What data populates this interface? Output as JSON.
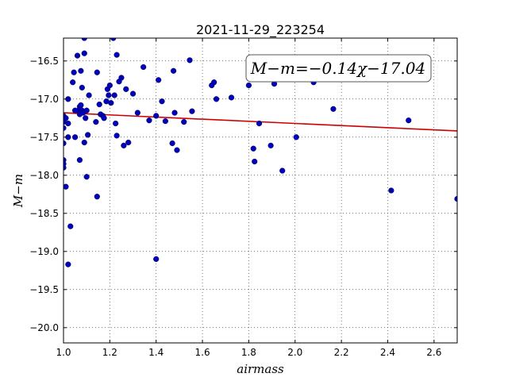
{
  "chart_data": {
    "type": "scatter",
    "title": "2021-11-29_223254",
    "xlabel": "airmass",
    "ylabel": "M−m",
    "xlim": [
      1.0,
      2.7
    ],
    "ylim": [
      -20.2,
      -16.2
    ],
    "y_inverted": true,
    "grid": true,
    "x_ticks": [
      1.0,
      1.2,
      1.4,
      1.6,
      1.8,
      2.0,
      2.2,
      2.4,
      2.6
    ],
    "x_tick_labels": [
      "1.0",
      "1.2",
      "1.4",
      "1.6",
      "1.8",
      "2.0",
      "2.2",
      "2.4",
      "2.6"
    ],
    "y_ticks": [
      -16.5,
      -17.0,
      -17.5,
      -18.0,
      -18.5,
      -19.0,
      -19.5,
      -20.0
    ],
    "y_tick_labels": [
      "−16.5",
      "−17.0",
      "−17.5",
      "−18.0",
      "−18.5",
      "−19.0",
      "−19.5",
      "−20.0"
    ],
    "annotation": "M−m=−0.14χ−17.04",
    "fit": {
      "slope": -0.14,
      "intercept": -17.04,
      "color": "#cc0000"
    },
    "point_color": "#0000bb",
    "points": [
      [
        1.0,
        -17.22
      ],
      [
        1.0,
        -17.3
      ],
      [
        1.0,
        -17.38
      ],
      [
        1.0,
        -17.58
      ],
      [
        1.0,
        -17.8
      ],
      [
        1.0,
        -17.85
      ],
      [
        1.0,
        -17.9
      ],
      [
        1.01,
        -17.25
      ],
      [
        1.01,
        -18.15
      ],
      [
        1.02,
        -17.0
      ],
      [
        1.02,
        -17.32
      ],
      [
        1.02,
        -17.5
      ],
      [
        1.02,
        -19.17
      ],
      [
        1.03,
        -18.67
      ],
      [
        1.04,
        -16.78
      ],
      [
        1.045,
        -16.65
      ],
      [
        1.05,
        -17.15
      ],
      [
        1.05,
        -17.5
      ],
      [
        1.06,
        -16.43
      ],
      [
        1.065,
        -17.15
      ],
      [
        1.07,
        -17.1
      ],
      [
        1.07,
        -17.2
      ],
      [
        1.07,
        -17.8
      ],
      [
        1.075,
        -16.63
      ],
      [
        1.075,
        -17.08
      ],
      [
        1.08,
        -16.85
      ],
      [
        1.08,
        -17.15
      ],
      [
        1.085,
        -17.18
      ],
      [
        1.09,
        -16.2
      ],
      [
        1.09,
        -16.4
      ],
      [
        1.09,
        -17.57
      ],
      [
        1.095,
        -17.25
      ],
      [
        1.1,
        -17.15
      ],
      [
        1.1,
        -18.02
      ],
      [
        1.105,
        -17.47
      ],
      [
        1.11,
        -16.95
      ],
      [
        1.14,
        -17.3
      ],
      [
        1.145,
        -16.65
      ],
      [
        1.145,
        -18.28
      ],
      [
        1.155,
        -17.07
      ],
      [
        1.16,
        -17.2
      ],
      [
        1.17,
        -17.22
      ],
      [
        1.175,
        -17.25
      ],
      [
        1.185,
        -17.03
      ],
      [
        1.19,
        -16.87
      ],
      [
        1.195,
        -16.95
      ],
      [
        1.2,
        -16.82
      ],
      [
        1.205,
        -17.05
      ],
      [
        1.215,
        -16.2
      ],
      [
        1.22,
        -16.95
      ],
      [
        1.225,
        -17.32
      ],
      [
        1.23,
        -17.48
      ],
      [
        1.23,
        -16.42
      ],
      [
        1.24,
        -16.77
      ],
      [
        1.25,
        -16.72
      ],
      [
        1.26,
        -17.61
      ],
      [
        1.27,
        -16.87
      ],
      [
        1.28,
        -17.57
      ],
      [
        1.3,
        -16.93
      ],
      [
        1.32,
        -17.18
      ],
      [
        1.345,
        -16.58
      ],
      [
        1.37,
        -17.28
      ],
      [
        1.4,
        -17.22
      ],
      [
        1.4,
        -19.1
      ],
      [
        1.41,
        -16.75
      ],
      [
        1.425,
        -17.03
      ],
      [
        1.44,
        -17.29
      ],
      [
        1.47,
        -17.58
      ],
      [
        1.475,
        -16.63
      ],
      [
        1.48,
        -17.18
      ],
      [
        1.49,
        -17.67
      ],
      [
        1.52,
        -17.3
      ],
      [
        1.545,
        -16.49
      ],
      [
        1.555,
        -17.16
      ],
      [
        1.64,
        -16.82
      ],
      [
        1.65,
        -16.78
      ],
      [
        1.66,
        -17.0
      ],
      [
        1.725,
        -16.98
      ],
      [
        1.8,
        -16.82
      ],
      [
        1.82,
        -17.65
      ],
      [
        1.825,
        -17.82
      ],
      [
        1.845,
        -17.32
      ],
      [
        1.895,
        -17.61
      ],
      [
        1.91,
        -16.8
      ],
      [
        1.945,
        -17.94
      ],
      [
        2.005,
        -17.5
      ],
      [
        2.08,
        -16.78
      ],
      [
        2.165,
        -17.13
      ],
      [
        2.415,
        -18.2
      ],
      [
        2.49,
        -17.28
      ],
      [
        2.7,
        -18.31
      ]
    ]
  }
}
